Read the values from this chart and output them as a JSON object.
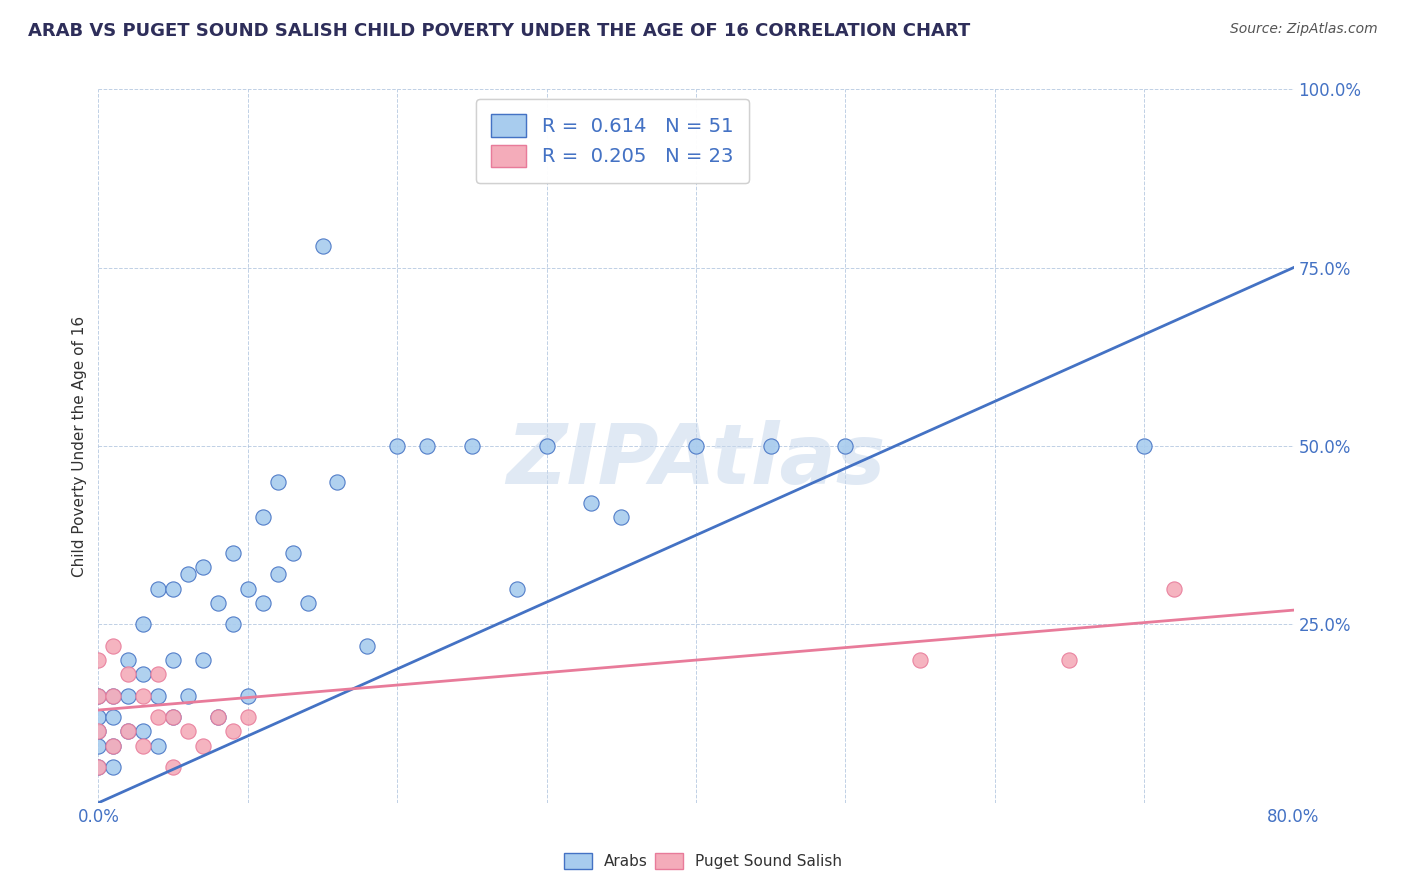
{
  "title": "ARAB VS PUGET SOUND SALISH CHILD POVERTY UNDER THE AGE OF 16 CORRELATION CHART",
  "source": "Source: ZipAtlas.com",
  "ylabel": "Child Poverty Under the Age of 16",
  "xlim": [
    0.0,
    0.8
  ],
  "ylim": [
    0.0,
    1.0
  ],
  "arab_R": 0.614,
  "arab_N": 51,
  "salish_R": 0.205,
  "salish_N": 23,
  "arab_color": "#A8CCEE",
  "salish_color": "#F4ACBA",
  "arab_line_color": "#4472C4",
  "salish_line_color": "#E87B9A",
  "watermark": "ZIPAtlas",
  "watermark_color": "#C8D8EC",
  "background_color": "#FFFFFF",
  "arab_x": [
    0.0,
    0.0,
    0.0,
    0.0,
    0.0,
    0.01,
    0.01,
    0.01,
    0.01,
    0.02,
    0.02,
    0.02,
    0.03,
    0.03,
    0.03,
    0.04,
    0.04,
    0.04,
    0.05,
    0.05,
    0.05,
    0.06,
    0.06,
    0.07,
    0.07,
    0.08,
    0.08,
    0.09,
    0.09,
    0.1,
    0.1,
    0.11,
    0.11,
    0.12,
    0.12,
    0.13,
    0.14,
    0.15,
    0.16,
    0.18,
    0.2,
    0.22,
    0.25,
    0.28,
    0.3,
    0.33,
    0.35,
    0.4,
    0.45,
    0.5,
    0.7
  ],
  "arab_y": [
    0.05,
    0.08,
    0.1,
    0.12,
    0.15,
    0.05,
    0.08,
    0.12,
    0.15,
    0.1,
    0.15,
    0.2,
    0.1,
    0.18,
    0.25,
    0.08,
    0.15,
    0.3,
    0.12,
    0.2,
    0.3,
    0.15,
    0.32,
    0.2,
    0.33,
    0.12,
    0.28,
    0.35,
    0.25,
    0.15,
    0.3,
    0.4,
    0.28,
    0.32,
    0.45,
    0.35,
    0.28,
    0.78,
    0.45,
    0.22,
    0.5,
    0.5,
    0.5,
    0.3,
    0.5,
    0.42,
    0.4,
    0.5,
    0.5,
    0.5,
    0.5
  ],
  "salish_x": [
    0.0,
    0.0,
    0.0,
    0.0,
    0.01,
    0.01,
    0.01,
    0.02,
    0.02,
    0.03,
    0.03,
    0.04,
    0.04,
    0.05,
    0.05,
    0.06,
    0.07,
    0.08,
    0.09,
    0.1,
    0.55,
    0.65,
    0.72
  ],
  "salish_y": [
    0.05,
    0.1,
    0.15,
    0.2,
    0.08,
    0.15,
    0.22,
    0.1,
    0.18,
    0.08,
    0.15,
    0.12,
    0.18,
    0.05,
    0.12,
    0.1,
    0.08,
    0.12,
    0.1,
    0.12,
    0.2,
    0.2,
    0.3
  ],
  "arab_line_x": [
    0.0,
    0.8
  ],
  "arab_line_y": [
    0.0,
    0.75
  ],
  "salish_line_x": [
    0.0,
    0.8
  ],
  "salish_line_y": [
    0.13,
    0.27
  ]
}
